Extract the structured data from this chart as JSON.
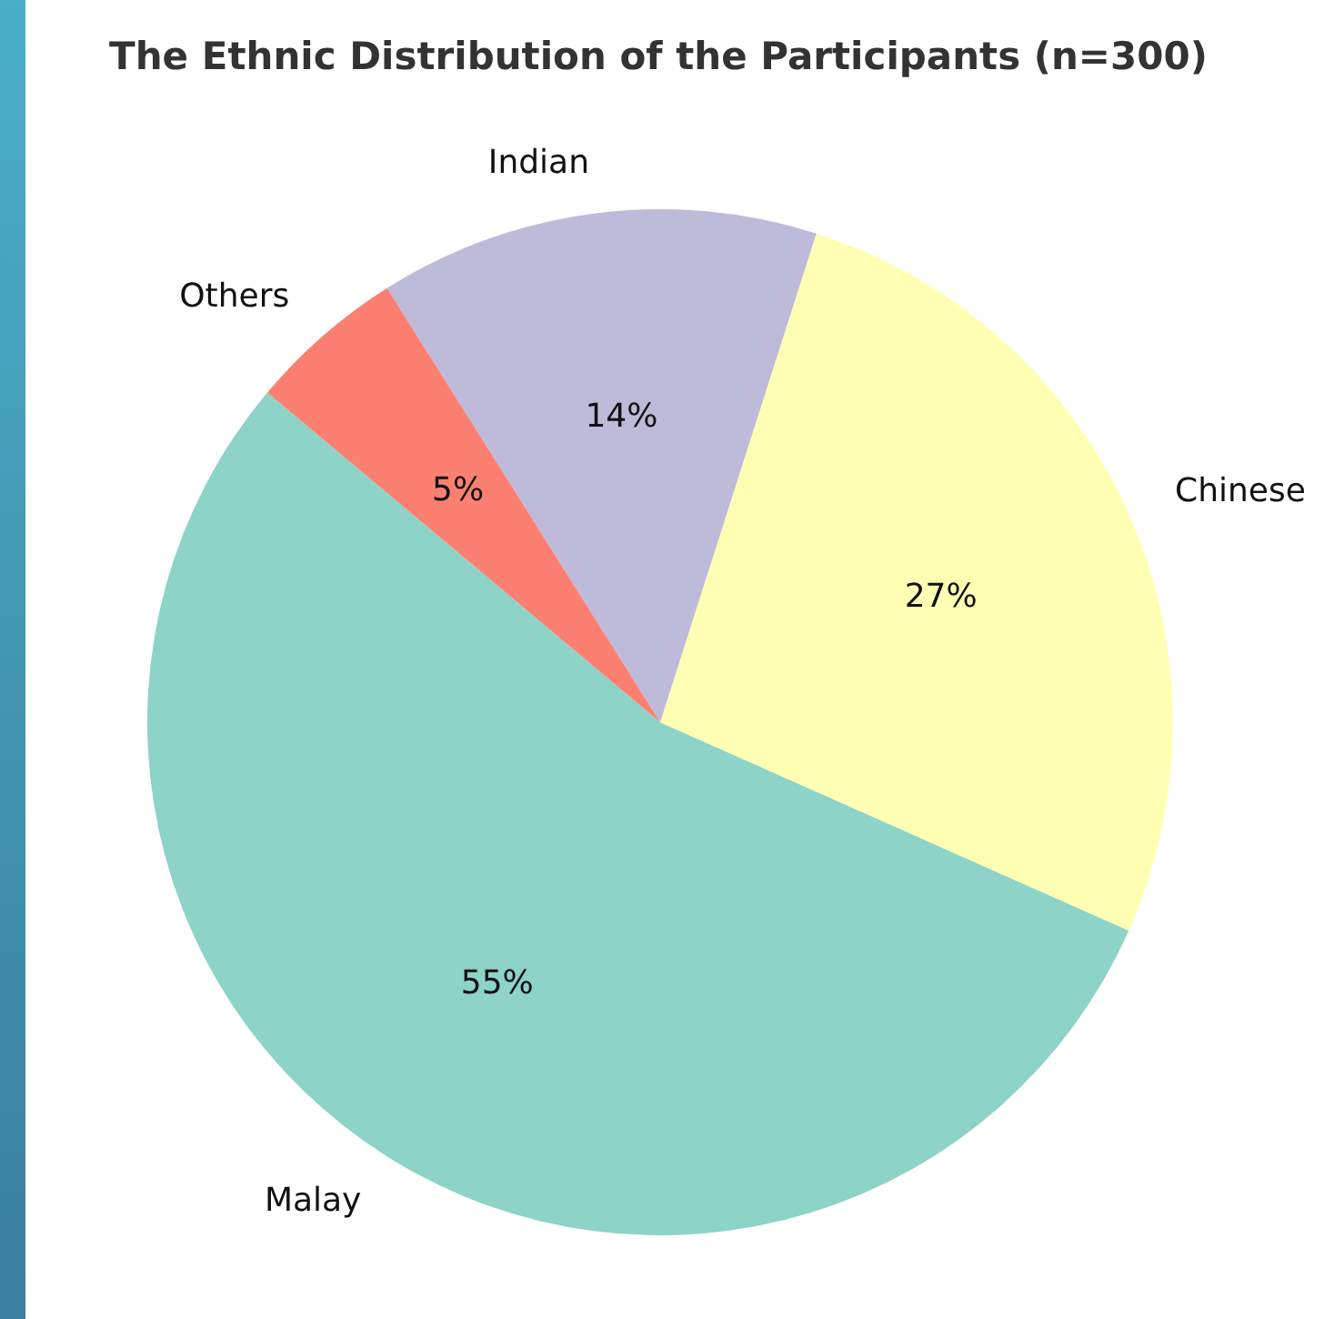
{
  "chart_data": {
    "type": "pie",
    "title": "The Ethnic Distribution of the Participants (n=300)",
    "categories": [
      "Malay",
      "Chinese",
      "Indian",
      "Others"
    ],
    "values": [
      55,
      27,
      14,
      5
    ],
    "colors": [
      "#8dd3c7",
      "#ffffb3",
      "#bebada",
      "#fb8072"
    ],
    "value_labels": [
      "55%",
      "27%",
      "14%",
      "5%"
    ]
  }
}
